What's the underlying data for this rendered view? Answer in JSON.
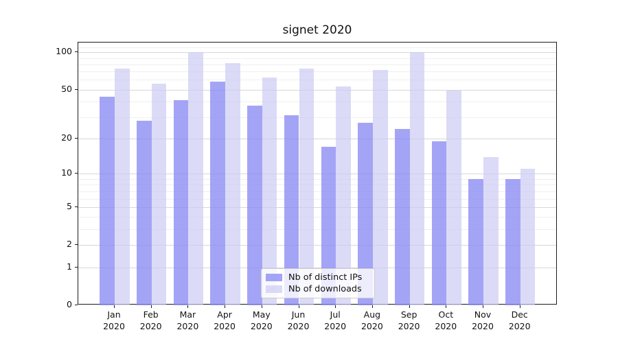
{
  "title": "signet 2020",
  "chart_data": {
    "type": "bar",
    "title": "signet 2020",
    "xlabel": "",
    "ylabel": "",
    "yscale": "log1p",
    "ylim": [
      0,
      120
    ],
    "yticks": [
      0,
      1,
      2,
      5,
      10,
      20,
      50,
      100
    ],
    "minor_gridlines": [
      3,
      4,
      6,
      7,
      8,
      9,
      30,
      40,
      60,
      70,
      80,
      90,
      110
    ],
    "grid": true,
    "legend_position": "lower center",
    "categories": [
      "Jan",
      "Feb",
      "Mar",
      "Apr",
      "May",
      "Jun",
      "Jul",
      "Aug",
      "Sep",
      "Oct",
      "Nov",
      "Dec"
    ],
    "year": "2020",
    "series": [
      {
        "name": "Nb of distinct IPs",
        "color": "#8a8af4",
        "alpha": 0.78,
        "values": [
          44,
          28,
          41,
          58,
          37,
          31,
          17,
          27,
          24,
          19,
          9,
          9
        ]
      },
      {
        "name": "Nb of downloads",
        "color": "#ccccf4",
        "alpha": 0.7,
        "values": [
          74,
          56,
          100,
          82,
          63,
          74,
          53,
          72,
          100,
          49,
          14,
          11
        ]
      }
    ]
  },
  "legend": {
    "item1": "Nb of distinct IPs",
    "item2": "Nb of downloads"
  }
}
